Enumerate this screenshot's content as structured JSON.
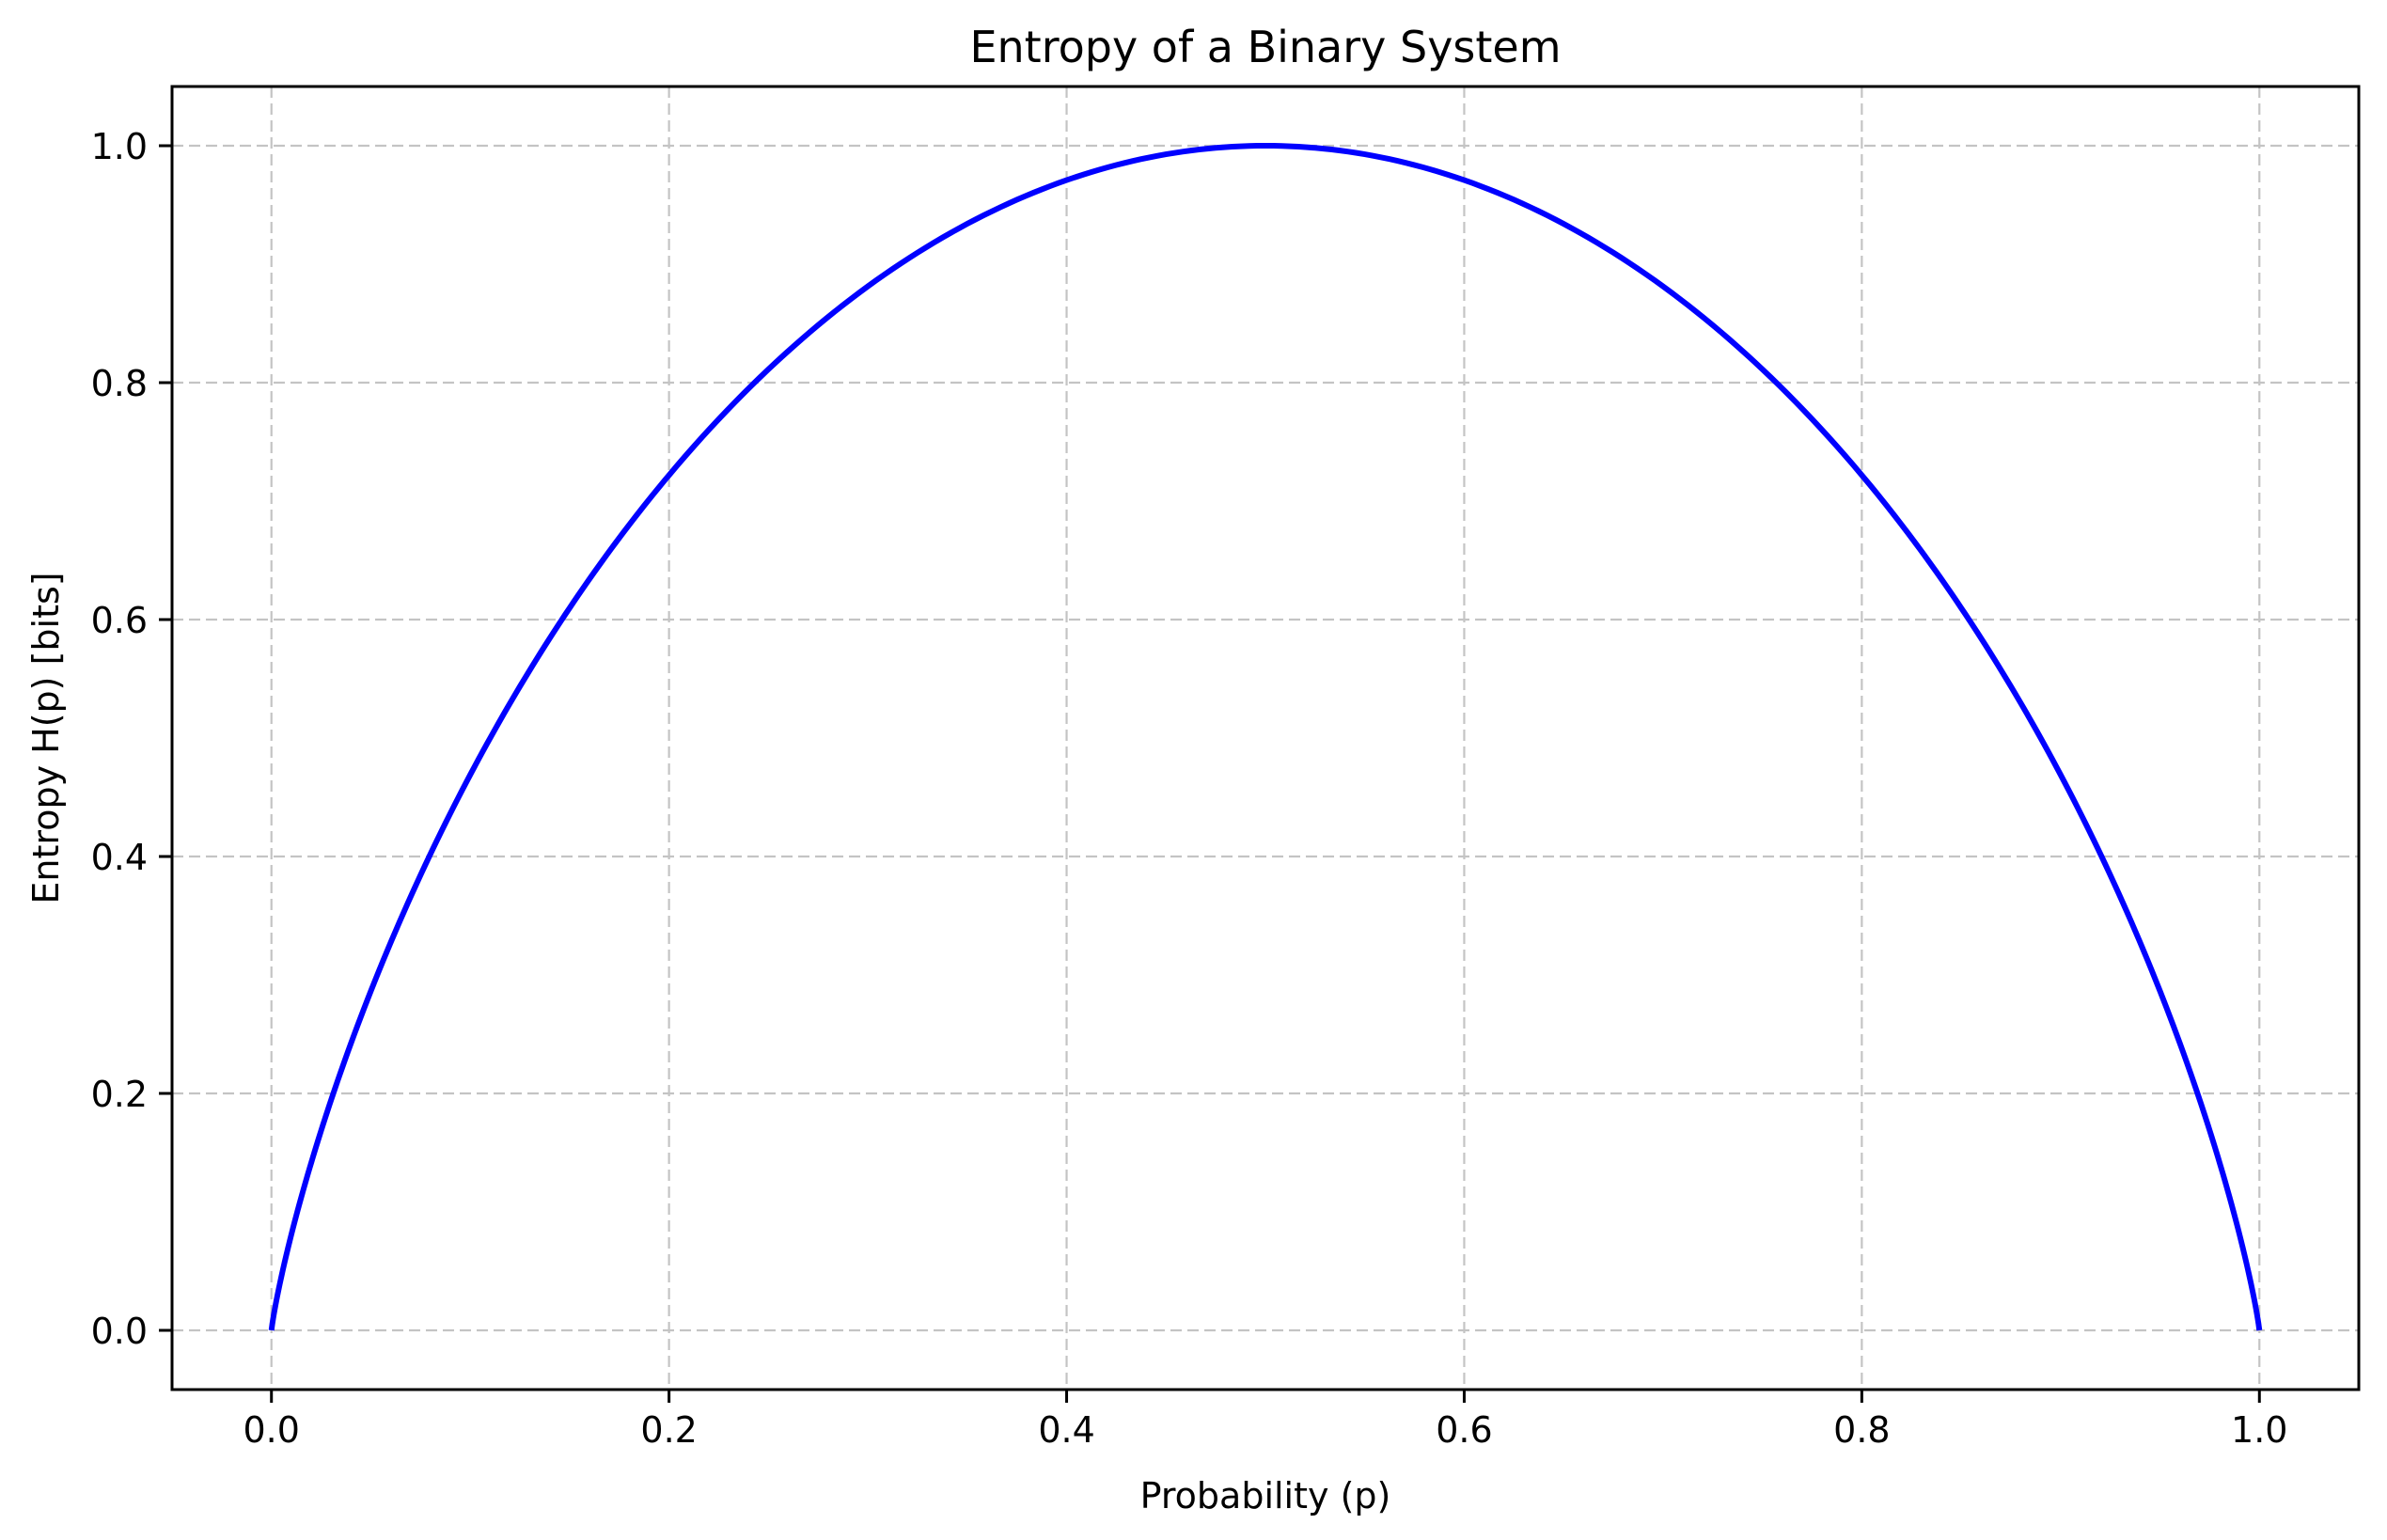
{
  "chart_data": {
    "type": "line",
    "title": "Entropy of a Binary System",
    "xlabel": "Probability (p)",
    "ylabel": "Entropy H(p) [bits]",
    "xlim": [
      -0.05,
      1.05
    ],
    "ylim": [
      -0.05,
      1.05
    ],
    "xticks": [
      0.0,
      0.2,
      0.4,
      0.6,
      0.8,
      1.0
    ],
    "xtick_labels": [
      "0.0",
      "0.2",
      "0.4",
      "0.6",
      "0.8",
      "1.0"
    ],
    "yticks": [
      0.0,
      0.2,
      0.4,
      0.6,
      0.8,
      1.0
    ],
    "ytick_labels": [
      "0.0",
      "0.2",
      "0.4",
      "0.6",
      "0.8",
      "1.0"
    ],
    "grid": true,
    "grid_style": "dashed",
    "legend": null,
    "series": [
      {
        "name": "H(p)",
        "color": "#0000ff",
        "x": [
          0.0,
          0.005,
          0.01,
          0.02,
          0.03,
          0.05,
          0.075,
          0.1,
          0.125,
          0.15,
          0.175,
          0.2,
          0.25,
          0.3,
          0.35,
          0.4,
          0.45,
          0.5,
          0.55,
          0.6,
          0.65,
          0.7,
          0.75,
          0.8,
          0.825,
          0.85,
          0.875,
          0.9,
          0.925,
          0.95,
          0.97,
          0.98,
          0.99,
          0.995,
          1.0
        ],
        "y": [
          0.0,
          0.0454,
          0.0808,
          0.1414,
          0.1944,
          0.2864,
          0.3843,
          0.469,
          0.5436,
          0.6098,
          0.669,
          0.7219,
          0.8113,
          0.8813,
          0.9341,
          0.971,
          0.9928,
          1.0,
          0.9928,
          0.971,
          0.9341,
          0.8813,
          0.8113,
          0.7219,
          0.669,
          0.6098,
          0.5436,
          0.469,
          0.3843,
          0.2864,
          0.1944,
          0.1414,
          0.0808,
          0.0454,
          0.0
        ]
      }
    ]
  },
  "colors": {
    "line": "#0000ff",
    "grid": "#c4c4c4",
    "axes": "#000000",
    "background": "#ffffff"
  }
}
